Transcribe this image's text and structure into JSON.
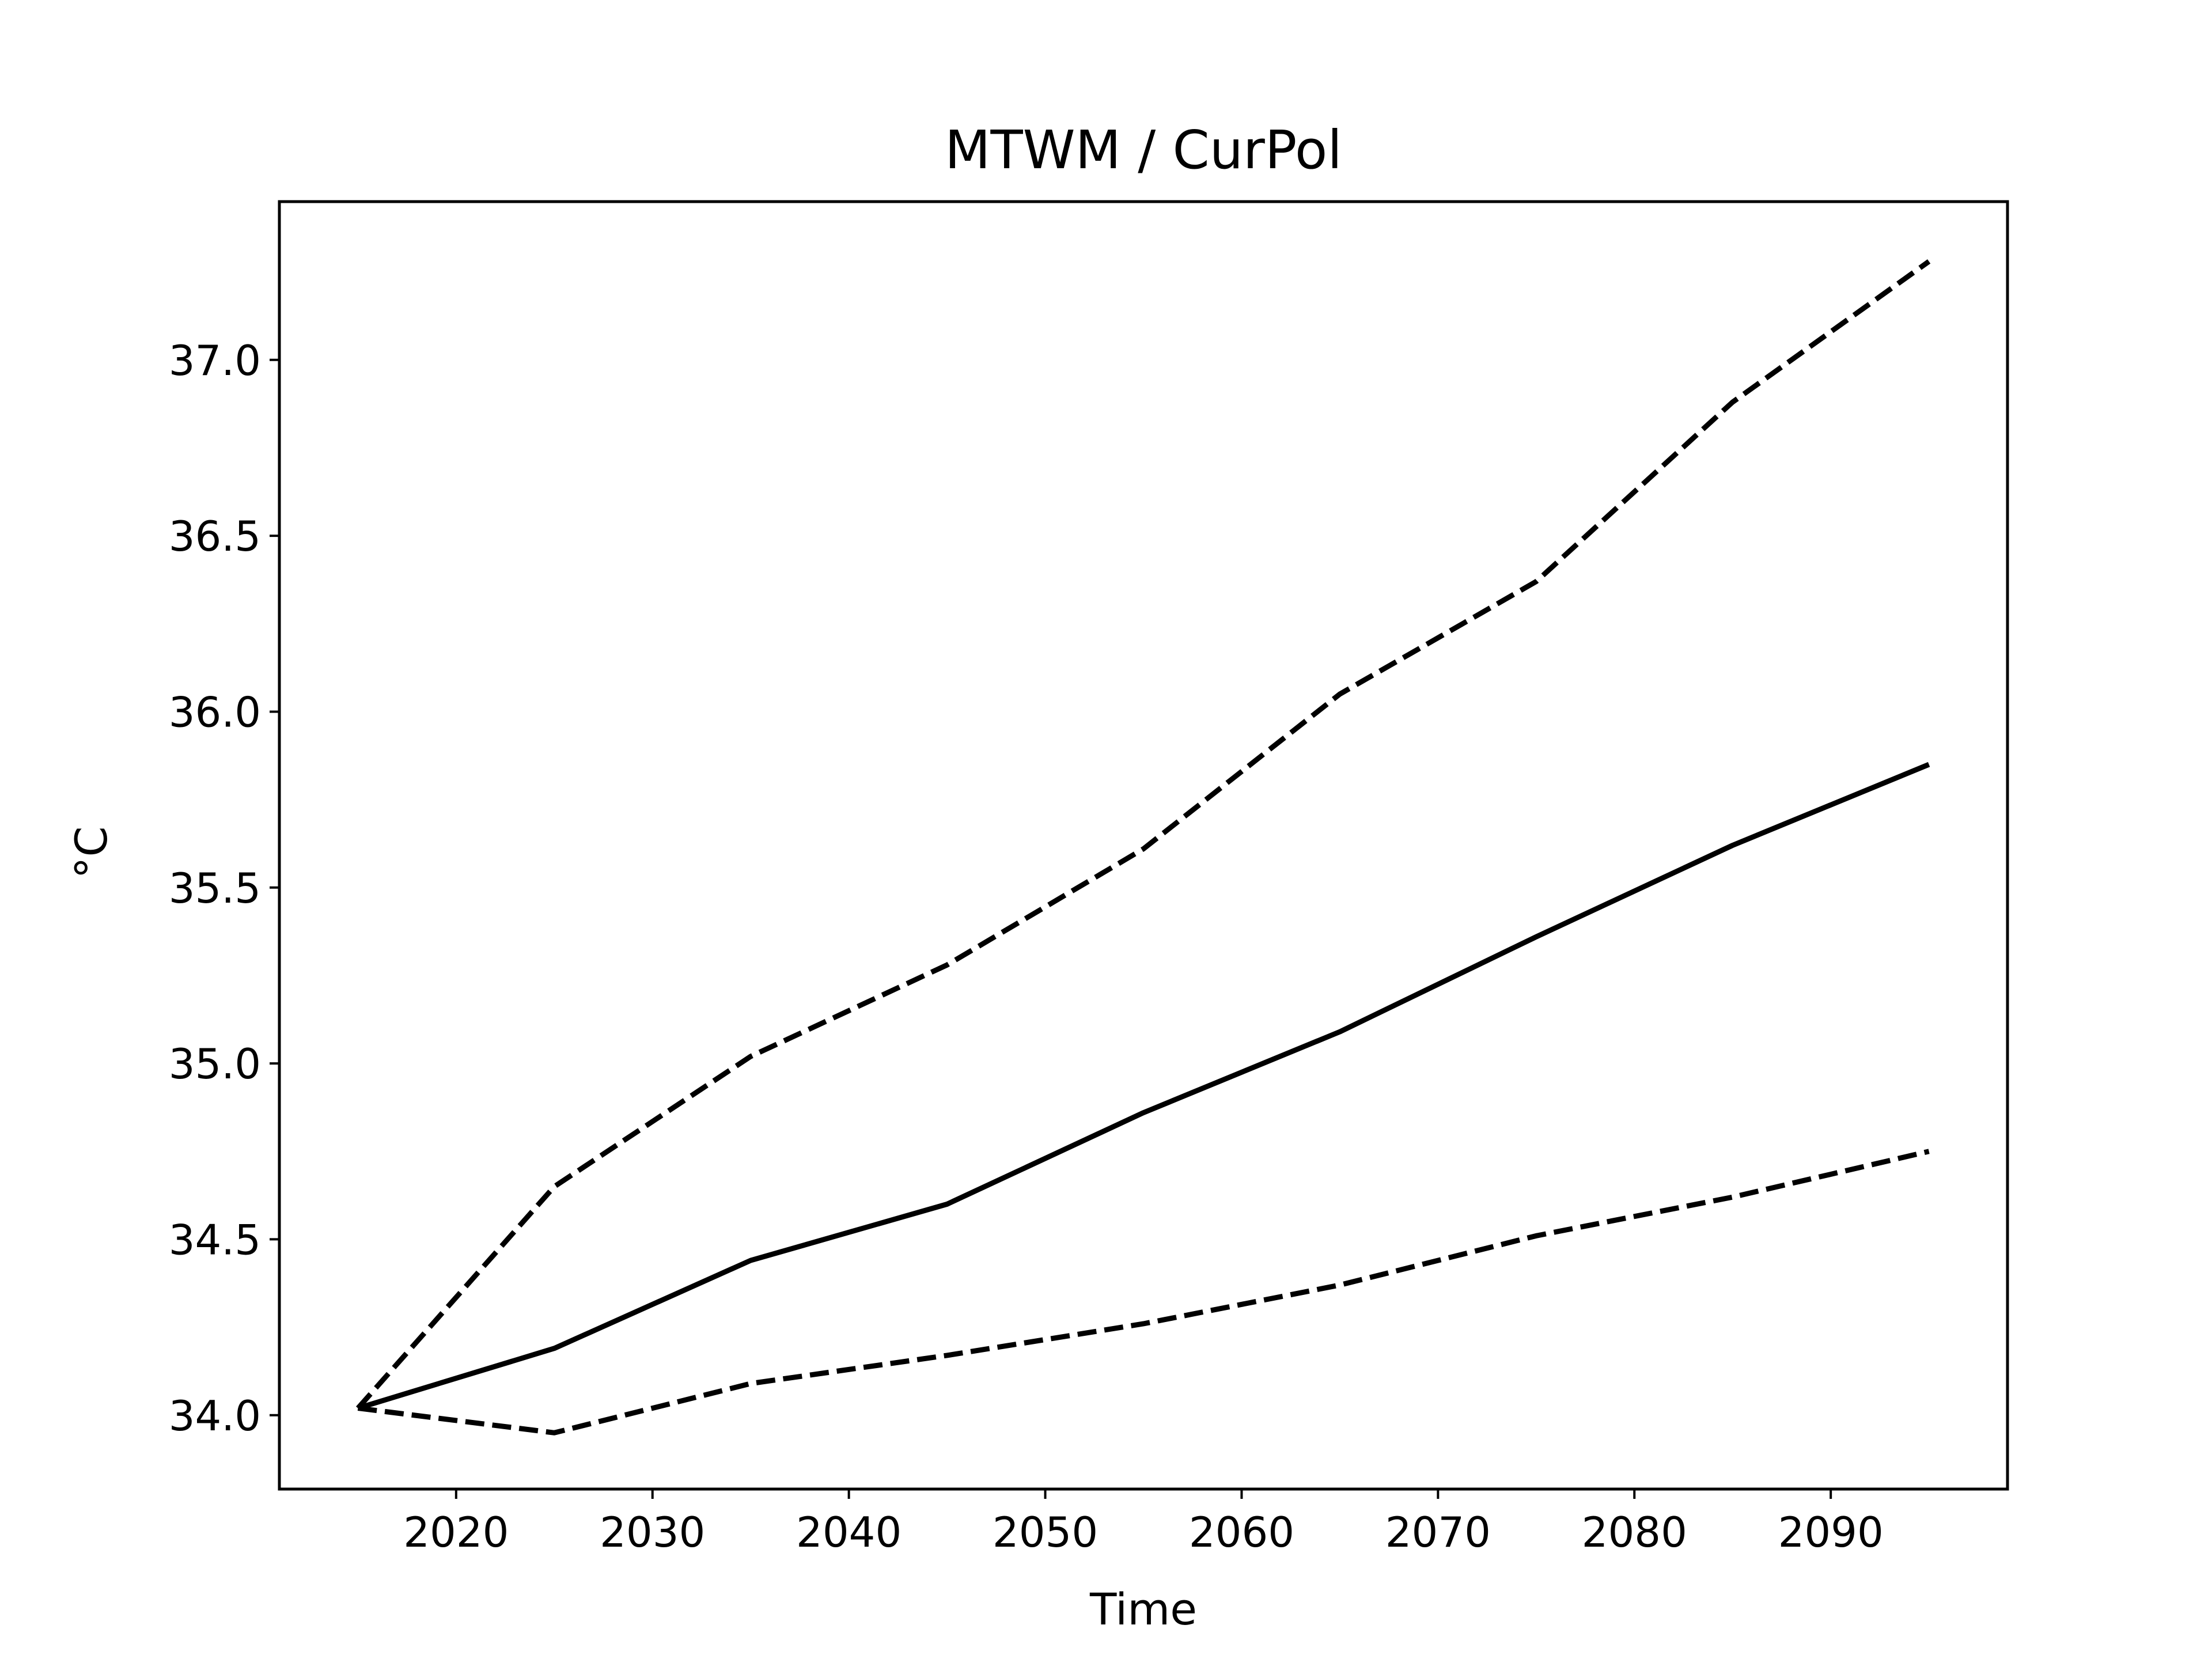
{
  "chart_data": {
    "type": "line",
    "title": "MTWM / CurPol",
    "xlabel": "Time",
    "ylabel": "°C",
    "x": [
      2015,
      2025,
      2035,
      2045,
      2055,
      2065,
      2075,
      2085,
      2095
    ],
    "series": [
      {
        "style": "solid",
        "values": [
          34.02,
          34.19,
          34.44,
          34.6,
          34.86,
          35.09,
          35.36,
          35.62,
          35.85
        ]
      },
      {
        "style": "dashed",
        "values": [
          34.02,
          34.65,
          35.02,
          35.28,
          35.61,
          36.05,
          36.37,
          36.88,
          37.28
        ]
      },
      {
        "style": "dashed",
        "values": [
          34.02,
          33.95,
          34.09,
          34.17,
          34.26,
          34.37,
          34.51,
          34.62,
          34.75
        ]
      }
    ],
    "xlim": [
      2011,
      2099
    ],
    "ylim": [
      33.79,
      37.45
    ],
    "xticks": [
      "2020",
      "2030",
      "2040",
      "2050",
      "2060",
      "2070",
      "2080",
      "2090"
    ],
    "yticks": [
      "34.0",
      "34.5",
      "35.0",
      "35.5",
      "36.0",
      "36.5",
      "37.0"
    ],
    "grid": false,
    "line_color": "#000000"
  }
}
